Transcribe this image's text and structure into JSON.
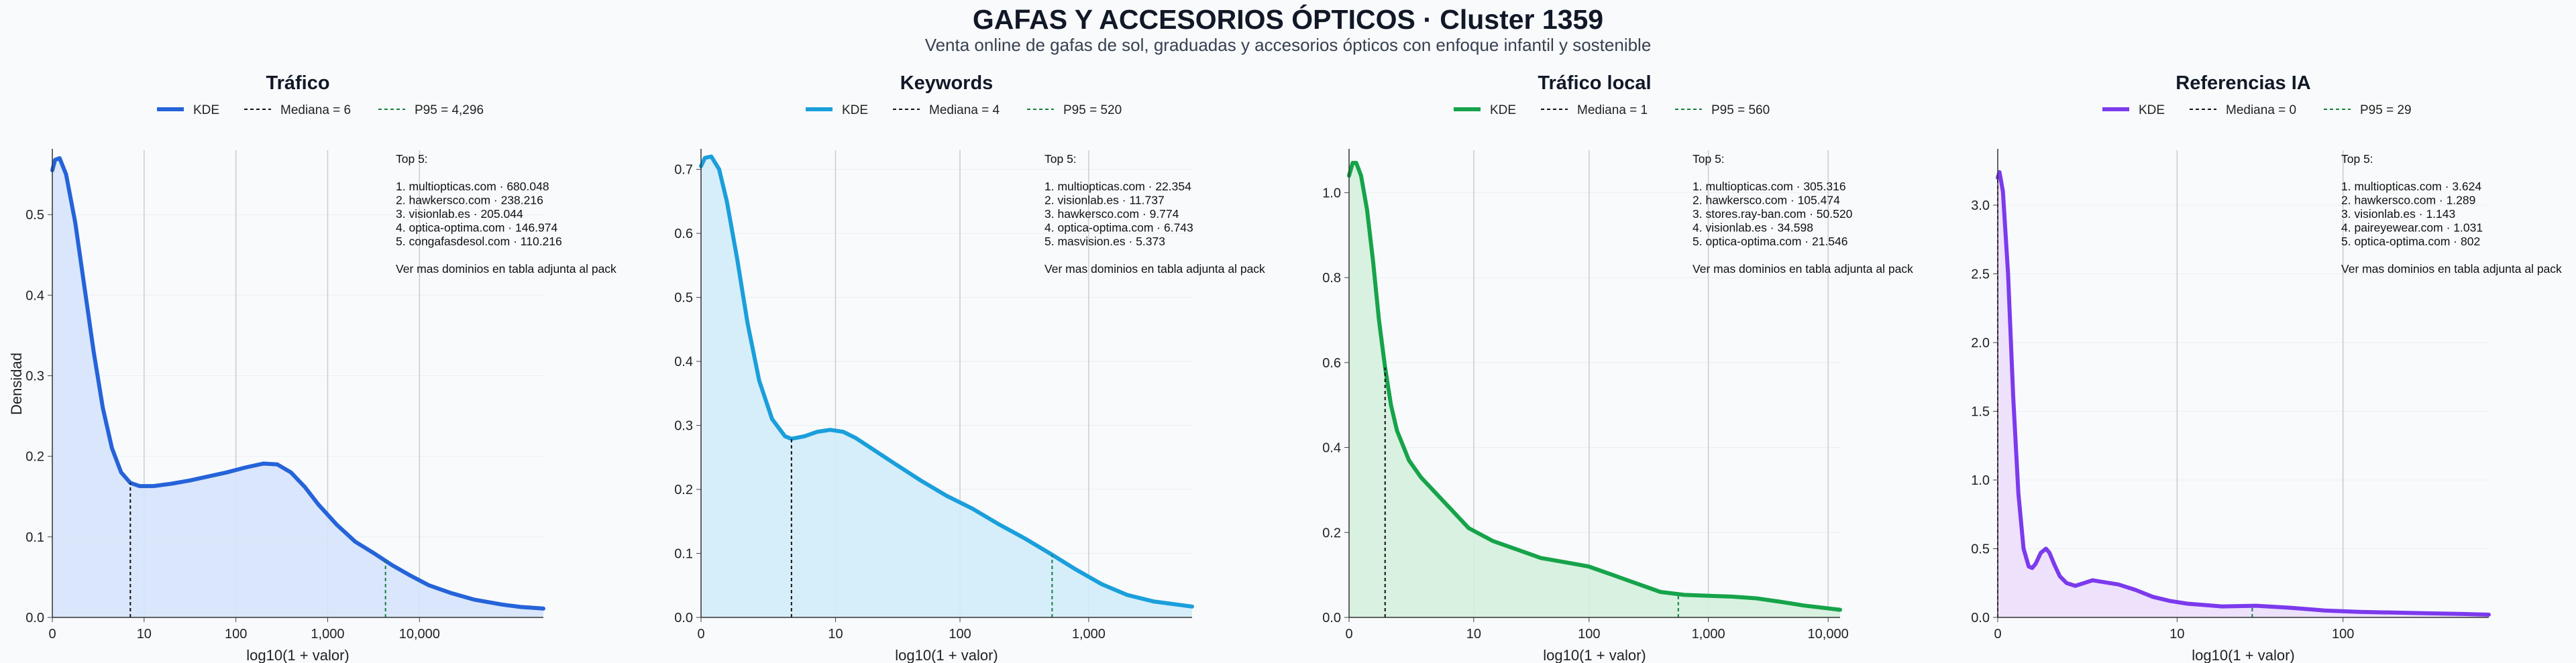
{
  "page": {
    "title": "GAFAS Y ACCESORIOS ÓPTICOS · Cluster 1359",
    "subtitle": "Venta online de gafas de sol, graduadas y accesorios ópticos con enfoque infantil y sostenible"
  },
  "chart_data": [
    {
      "type": "line",
      "title": "Tráfico",
      "xlabel": "log10(1 + valor)",
      "ylabel": "Densidad",
      "x_scale": "log10(1+x)",
      "xlim": [
        0,
        5.35
      ],
      "ylim": [
        0,
        0.58
      ],
      "xticks": [
        {
          "v": 0,
          "label": "0"
        },
        {
          "v": 1,
          "label": "10"
        },
        {
          "v": 2,
          "label": "100"
        },
        {
          "v": 3,
          "label": "1,000"
        },
        {
          "v": 4,
          "label": "10,000"
        }
      ],
      "yticks": [
        {
          "v": 0,
          "label": "0.0"
        },
        {
          "v": 0.1,
          "label": "0.1"
        },
        {
          "v": 0.2,
          "label": "0.2"
        },
        {
          "v": 0.3,
          "label": "0.3"
        },
        {
          "v": 0.4,
          "label": "0.4"
        },
        {
          "v": 0.5,
          "label": "0.5"
        }
      ],
      "color": "#2563d9",
      "fill": "#d6e3fb",
      "median_color": "#111111",
      "p95_color": "#15803d",
      "kde_x": [
        0,
        0.03,
        0.08,
        0.15,
        0.25,
        0.35,
        0.45,
        0.55,
        0.65,
        0.75,
        0.85,
        0.95,
        1.1,
        1.3,
        1.5,
        1.7,
        1.9,
        2.1,
        2.3,
        2.45,
        2.6,
        2.75,
        2.9,
        3.1,
        3.3,
        3.5,
        3.7,
        3.9,
        4.1,
        4.35,
        4.6,
        4.9,
        5.1,
        5.35
      ],
      "kde_y": [
        0.555,
        0.568,
        0.57,
        0.55,
        0.49,
        0.41,
        0.33,
        0.26,
        0.21,
        0.18,
        0.167,
        0.163,
        0.163,
        0.166,
        0.17,
        0.175,
        0.18,
        0.186,
        0.191,
        0.19,
        0.18,
        0.162,
        0.14,
        0.115,
        0.094,
        0.08,
        0.065,
        0.052,
        0.04,
        0.03,
        0.022,
        0.016,
        0.013,
        0.011
      ],
      "legend": {
        "kde": "KDE",
        "median": "Mediana = 6",
        "p95": "P95 = 4,296"
      },
      "median_x": 0.85,
      "p95_x": 3.63,
      "annotation": [
        "Top 5:",
        "",
        "1. multiopticas.com · 680.048",
        "2. hawkersco.com · 238.216",
        "3. visionlab.es · 205.044",
        "4. optica-optima.com · 146.974",
        "5. congafasdesol.com · 110.216",
        "",
        "Ver mas dominios en tabla adjunta al pack"
      ]
    },
    {
      "type": "line",
      "title": "Keywords",
      "xlabel": "log10(1 + valor)",
      "ylabel": "",
      "x_scale": "log10(1+x)",
      "xlim": [
        0,
        3.8
      ],
      "ylim": [
        0,
        0.73
      ],
      "xticks": [
        {
          "v": 0,
          "label": "0"
        },
        {
          "v": 1.041,
          "label": "10"
        },
        {
          "v": 2.004,
          "label": "100"
        },
        {
          "v": 3.0,
          "label": "1,000"
        }
      ],
      "yticks": [
        {
          "v": 0,
          "label": "0.0"
        },
        {
          "v": 0.1,
          "label": "0.1"
        },
        {
          "v": 0.2,
          "label": "0.2"
        },
        {
          "v": 0.3,
          "label": "0.3"
        },
        {
          "v": 0.4,
          "label": "0.4"
        },
        {
          "v": 0.5,
          "label": "0.5"
        },
        {
          "v": 0.6,
          "label": "0.6"
        },
        {
          "v": 0.7,
          "label": "0.7"
        }
      ],
      "color": "#1a9fdb",
      "fill": "#d2ecfa",
      "median_color": "#111111",
      "p95_color": "#15803d",
      "kde_x": [
        0,
        0.03,
        0.08,
        0.14,
        0.2,
        0.28,
        0.36,
        0.45,
        0.55,
        0.65,
        0.7,
        0.8,
        0.9,
        1.0,
        1.1,
        1.2,
        1.35,
        1.5,
        1.7,
        1.9,
        2.1,
        2.3,
        2.5,
        2.7,
        2.9,
        3.1,
        3.3,
        3.5,
        3.8
      ],
      "kde_y": [
        0.705,
        0.718,
        0.72,
        0.7,
        0.65,
        0.56,
        0.46,
        0.37,
        0.31,
        0.283,
        0.279,
        0.283,
        0.29,
        0.293,
        0.29,
        0.28,
        0.26,
        0.24,
        0.214,
        0.19,
        0.17,
        0.146,
        0.124,
        0.1,
        0.075,
        0.052,
        0.035,
        0.025,
        0.017
      ],
      "legend": {
        "kde": "KDE",
        "median": "Mediana = 4",
        "p95": "P95 = 520"
      },
      "median_x": 0.7,
      "p95_x": 2.717,
      "annotation": [
        "Top 5:",
        "",
        "1. multiopticas.com · 22.354",
        "2. visionlab.es · 11.737",
        "3. hawkersco.com · 9.774",
        "4. optica-optima.com · 6.743",
        "5. masvision.es · 5.373",
        "",
        "Ver mas dominios en tabla adjunta al pack"
      ]
    },
    {
      "type": "line",
      "title": "Tráfico local",
      "xlabel": "log10(1 + valor)",
      "ylabel": "",
      "x_scale": "log10(1+x)",
      "xlim": [
        0,
        4.1
      ],
      "ylim": [
        0,
        1.1
      ],
      "xticks": [
        {
          "v": 0,
          "label": "0"
        },
        {
          "v": 1.041,
          "label": "10"
        },
        {
          "v": 2.004,
          "label": "100"
        },
        {
          "v": 3.0,
          "label": "1,000"
        },
        {
          "v": 4.0,
          "label": "10,000"
        }
      ],
      "yticks": [
        {
          "v": 0,
          "label": "0.0"
        },
        {
          "v": 0.2,
          "label": "0.2"
        },
        {
          "v": 0.4,
          "label": "0.4"
        },
        {
          "v": 0.6,
          "label": "0.6"
        },
        {
          "v": 0.8,
          "label": "0.8"
        },
        {
          "v": 1.0,
          "label": "1.0"
        }
      ],
      "color": "#16a34a",
      "fill": "#d4f0dd",
      "median_color": "#111111",
      "p95_color": "#15803d",
      "kde_x": [
        0,
        0.03,
        0.06,
        0.1,
        0.15,
        0.2,
        0.25,
        0.3,
        0.35,
        0.4,
        0.5,
        0.6,
        0.7,
        0.8,
        0.9,
        1.0,
        1.2,
        1.4,
        1.6,
        1.8,
        2.0,
        2.2,
        2.4,
        2.6,
        2.8,
        3.0,
        3.2,
        3.4,
        3.6,
        3.8,
        4.1
      ],
      "kde_y": [
        1.04,
        1.07,
        1.07,
        1.04,
        0.96,
        0.84,
        0.7,
        0.59,
        0.5,
        0.44,
        0.37,
        0.33,
        0.3,
        0.27,
        0.24,
        0.21,
        0.18,
        0.16,
        0.14,
        0.13,
        0.12,
        0.1,
        0.08,
        0.06,
        0.053,
        0.051,
        0.049,
        0.045,
        0.037,
        0.028,
        0.018
      ],
      "legend": {
        "kde": "KDE",
        "median": "Mediana = 1",
        "p95": "P95 = 560"
      },
      "median_x": 0.301,
      "p95_x": 2.749,
      "annotation": [
        "Top 5:",
        "",
        "1. multiopticas.com · 305.316",
        "2. hawkersco.com · 105.474",
        "3. stores.ray-ban.com · 50.520",
        "4. visionlab.es · 34.598",
        "5. optica-optima.com · 21.546",
        "",
        "Ver mas dominios en tabla adjunta al pack"
      ]
    },
    {
      "type": "line",
      "title": "Referencias IA",
      "xlabel": "log10(1 + valor)",
      "ylabel": "",
      "x_scale": "log10(1+x)",
      "xlim": [
        0,
        2.85
      ],
      "ylim": [
        0,
        3.4
      ],
      "xticks": [
        {
          "v": 0,
          "label": "0"
        },
        {
          "v": 1.041,
          "label": "10"
        },
        {
          "v": 2.004,
          "label": "100"
        }
      ],
      "yticks": [
        {
          "v": 0,
          "label": "0.0"
        },
        {
          "v": 0.5,
          "label": "0.5"
        },
        {
          "v": 1.0,
          "label": "1.0"
        },
        {
          "v": 1.5,
          "label": "1.5"
        },
        {
          "v": 2.0,
          "label": "2.0"
        },
        {
          "v": 2.5,
          "label": "2.5"
        },
        {
          "v": 3.0,
          "label": "3.0"
        }
      ],
      "color": "#7c3aed",
      "fill": "#ebdefc",
      "median_color": "#111111",
      "p95_color": "#15803d",
      "kde_x": [
        0,
        0.01,
        0.03,
        0.06,
        0.09,
        0.12,
        0.15,
        0.18,
        0.2,
        0.22,
        0.25,
        0.28,
        0.3,
        0.33,
        0.36,
        0.4,
        0.45,
        0.5,
        0.55,
        0.6,
        0.7,
        0.8,
        0.9,
        1.0,
        1.1,
        1.2,
        1.3,
        1.5,
        1.7,
        1.9,
        2.1,
        2.3,
        2.5,
        2.7,
        2.85
      ],
      "kde_y": [
        3.2,
        3.24,
        3.1,
        2.5,
        1.6,
        0.9,
        0.5,
        0.37,
        0.36,
        0.39,
        0.47,
        0.5,
        0.47,
        0.38,
        0.3,
        0.25,
        0.23,
        0.25,
        0.27,
        0.26,
        0.24,
        0.2,
        0.15,
        0.12,
        0.1,
        0.09,
        0.08,
        0.085,
        0.07,
        0.05,
        0.04,
        0.035,
        0.03,
        0.025,
        0.02
      ],
      "legend": {
        "kde": "KDE",
        "median": "Mediana = 0",
        "p95": "P95 = 29"
      },
      "median_x": 0,
      "p95_x": 1.477,
      "annotation": [
        "Top 5:",
        "",
        "1. multiopticas.com · 3.624",
        "2. hawkersco.com · 1.289",
        "3. visionlab.es · 1.143",
        "4. paireyewear.com · 1.031",
        "5. optica-optima.com · 802",
        "",
        "Ver mas dominios en tabla adjunta al pack"
      ]
    }
  ]
}
